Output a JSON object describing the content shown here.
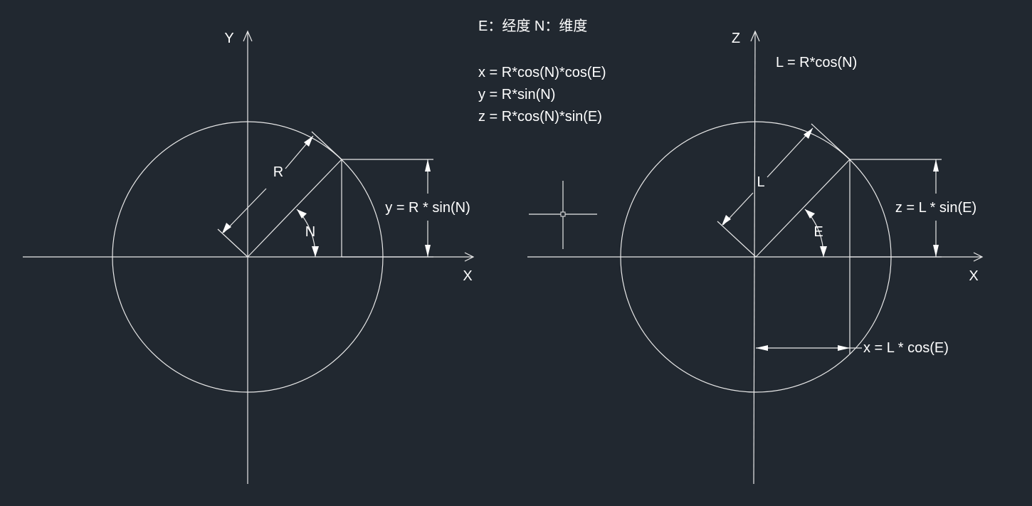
{
  "legend": {
    "definitions": "E：经度  N：维度",
    "formula_x": "x = R*cos(N)*cos(E)",
    "formula_y": "y = R*sin(N)",
    "formula_z": "z = R*cos(N)*sin(E)"
  },
  "left_diagram": {
    "axis_x_label": "X",
    "axis_y_label": "Y",
    "radius_label": "R",
    "angle_label": "N",
    "height_label": "y = R * sin(N)"
  },
  "right_diagram": {
    "axis_x_label": "X",
    "axis_z_label": "Z",
    "relation_label": "L = R*cos(N)",
    "radius_label": "L",
    "angle_label": "E",
    "height_label": "z = L * sin(E)",
    "width_label": "x = L * cos(E)"
  },
  "colors": {
    "background": "#212830",
    "lines": "#e9e9e9",
    "text": "#ffffff"
  }
}
